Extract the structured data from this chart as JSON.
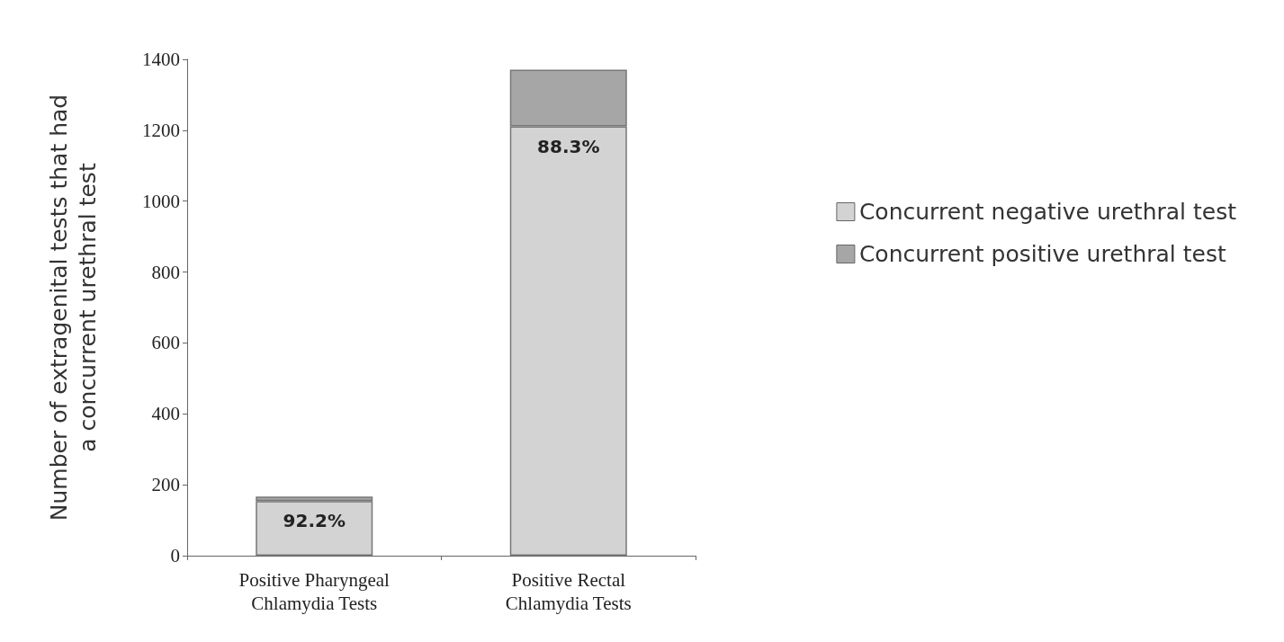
{
  "chart_data": {
    "type": "bar",
    "stacked": true,
    "ylabel": "Number of extragenital tests that had\na concurrent urethral test",
    "categories": [
      "Positive Pharyngeal\nChlamydia Tests",
      "Positive Rectal\nChlamydia Tests"
    ],
    "series": [
      {
        "name": "Concurrent negative urethral test",
        "color": "#d3d3d3",
        "values": [
          154,
          1211
        ]
      },
      {
        "name": "Concurrent positive urethral test",
        "color": "#a6a6a6",
        "values": [
          13,
          160
        ]
      }
    ],
    "annotations": [
      "92.2%",
      "88.3%"
    ],
    "ylim": [
      0,
      1400
    ],
    "yticks": [
      0,
      200,
      400,
      600,
      800,
      1000,
      1200,
      1400
    ],
    "grid": false,
    "legend": "right"
  }
}
